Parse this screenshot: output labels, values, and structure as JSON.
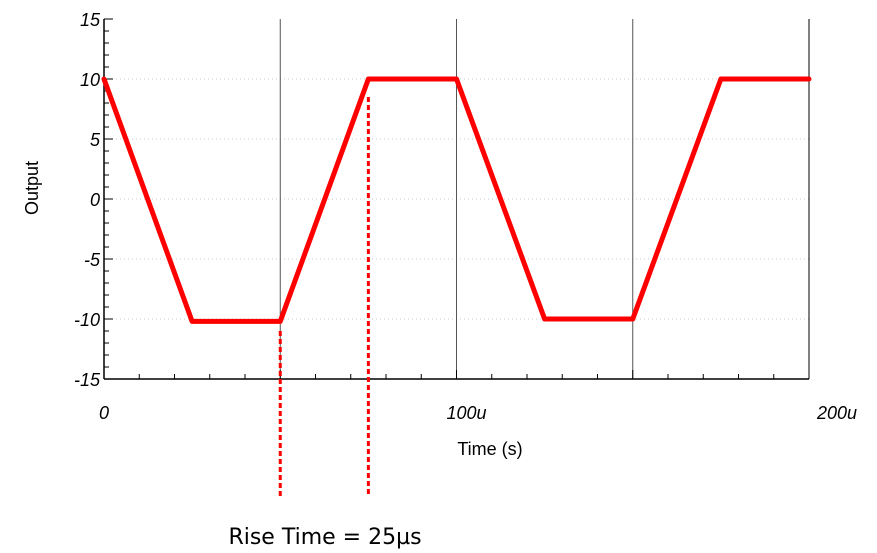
{
  "chart_data": {
    "type": "line",
    "xlabel": "Time (s)",
    "ylabel": "Output",
    "xlim": [
      0,
      200
    ],
    "ylim": [
      -15,
      15
    ],
    "x_ticks": [
      {
        "value": 0,
        "label": "0"
      },
      {
        "value": 100,
        "label": "100u"
      },
      {
        "value": 200,
        "label": "200u"
      }
    ],
    "y_ticks": [
      {
        "value": 15,
        "label": "15"
      },
      {
        "value": 10,
        "label": "10"
      },
      {
        "value": 5,
        "label": "5"
      },
      {
        "value": 0,
        "label": "0"
      },
      {
        "value": -5,
        "label": "-5"
      },
      {
        "value": -10,
        "label": "-10"
      },
      {
        "value": -15,
        "label": "-15"
      }
    ],
    "vertical_gridlines": [
      50,
      100,
      150
    ],
    "grid": true,
    "series": [
      {
        "color": "#ff0000",
        "x": [
          0,
          25,
          50,
          75,
          100,
          125,
          150,
          175,
          200
        ],
        "y": [
          10,
          -10.2,
          -10.2,
          10,
          10,
          -10,
          -10,
          10,
          10
        ]
      }
    ],
    "markers": [
      {
        "x": 50,
        "color": "#ff0000",
        "style": "dotted"
      },
      {
        "x": 75,
        "color": "#ff0000",
        "style": "dotted"
      }
    ],
    "annotation": "Rise Time = 25µs"
  }
}
